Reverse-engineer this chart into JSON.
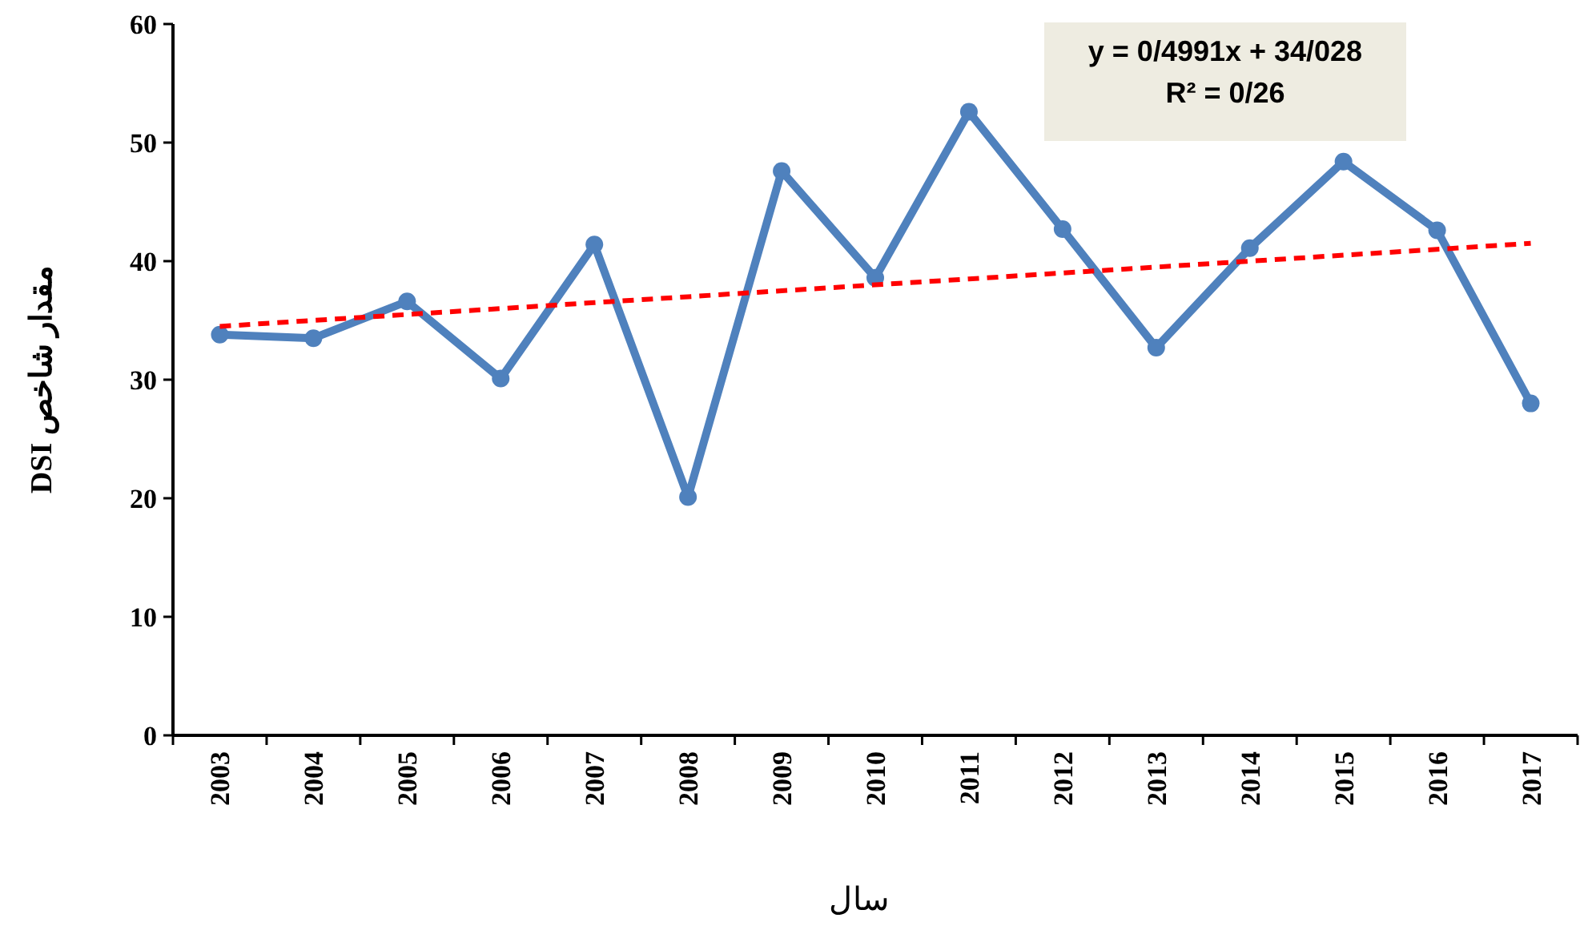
{
  "chart_data": {
    "type": "line",
    "xlabel": "سال",
    "ylabel": "مقدار شاخص DSI",
    "categories": [
      "2003",
      "2004",
      "2005",
      "2006",
      "2007",
      "2008",
      "2009",
      "2010",
      "2011",
      "2012",
      "2013",
      "2014",
      "2015",
      "2016",
      "2017"
    ],
    "series": [
      {
        "color": "#4f81bd",
        "marker": "circle",
        "values": [
          33.8,
          33.5,
          36.6,
          30.1,
          41.4,
          20.1,
          47.6,
          38.6,
          52.6,
          42.7,
          32.7,
          41.1,
          48.4,
          42.6,
          28.0
        ]
      },
      {
        "type": "line",
        "color": "#ff0000",
        "line_style": "dashed",
        "marker": "none",
        "values": [
          34.5,
          35.0,
          35.5,
          36.0,
          36.5,
          37.0,
          37.5,
          38.0,
          38.5,
          39.0,
          39.5,
          40.0,
          40.5,
          41.0,
          41.5
        ]
      }
    ],
    "ylim": [
      0,
      60
    ],
    "yticks": [
      0,
      10,
      20,
      30,
      40,
      50,
      60
    ],
    "annotations": [
      "y = 0/4991x + 34/028",
      "R² = 0/26"
    ]
  }
}
